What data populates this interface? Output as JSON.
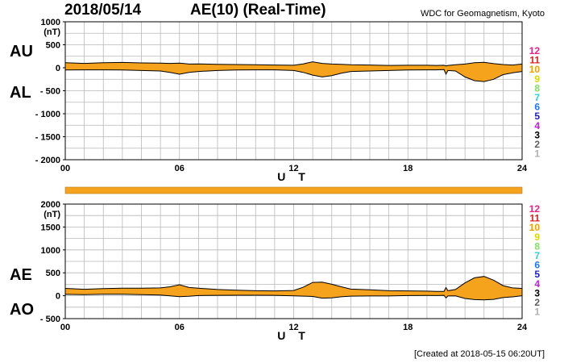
{
  "header": {
    "date": "2018/05/14",
    "index_title": "AE(10) (Real-Time)",
    "credit": "WDC for Geomagnetism, Kyoto"
  },
  "footer": {
    "created": "[Created at 2018-05-15 06:20UT]"
  },
  "station_scale": {
    "labels": [
      "12",
      "11",
      "10",
      "9",
      "8",
      "7",
      "6",
      "5",
      "4",
      "3",
      "2",
      "1"
    ],
    "colors": [
      "#e8237e",
      "#e02020",
      "#f0a000",
      "#d8d800",
      "#80e060",
      "#30d0d0",
      "#1e78ff",
      "#2020c0",
      "#c020e0",
      "#000000",
      "#606060",
      "#b0b0b0"
    ]
  },
  "colors": {
    "fill": "#f5a21c",
    "line": "#000000",
    "grid": "#b8b8b8",
    "coverage": "#f5a21c"
  },
  "chart_data": [
    {
      "type": "area",
      "panel": "AU/AL",
      "label_upper": "AU",
      "label_lower": "AL",
      "unit_label": "(nT)",
      "xlabel": "U T",
      "xlim": [
        0,
        24
      ],
      "ylim": [
        -2000,
        1000
      ],
      "yticks": [
        1000,
        500,
        0,
        -500,
        -1000,
        -1500,
        -2000
      ],
      "ytick_labels": [
        "1000",
        "500",
        "0",
        "- 500",
        "- 1000",
        "- 1500",
        "- 2000"
      ],
      "xticks": [
        0,
        6,
        12,
        18,
        24
      ],
      "xtick_labels": [
        "00",
        "06",
        "12",
        "18",
        "24"
      ],
      "grid": true,
      "x": [
        0,
        1,
        2,
        3,
        4,
        5,
        5.5,
        6,
        6.5,
        7,
        8,
        9,
        10,
        11,
        12,
        12.5,
        13,
        13.5,
        14,
        14.5,
        15,
        16,
        17,
        18,
        19,
        19.5,
        19.9,
        20,
        20.1,
        20.5,
        21,
        21.5,
        22,
        22.5,
        23,
        23.5,
        24
      ],
      "series": [
        {
          "name": "AU",
          "values": [
            110,
            95,
            110,
            115,
            105,
            100,
            95,
            100,
            80,
            85,
            75,
            70,
            65,
            60,
            55,
            85,
            130,
            95,
            80,
            75,
            65,
            60,
            50,
            55,
            55,
            50,
            55,
            40,
            50,
            65,
            80,
            110,
            120,
            90,
            70,
            60,
            80
          ]
        },
        {
          "name": "AL",
          "values": [
            -50,
            -45,
            -45,
            -50,
            -60,
            -70,
            -100,
            -140,
            -100,
            -80,
            -60,
            -50,
            -45,
            -45,
            -60,
            -100,
            -160,
            -200,
            -170,
            -120,
            -80,
            -70,
            -60,
            -50,
            -45,
            -45,
            -40,
            -140,
            -60,
            -70,
            -200,
            -280,
            -300,
            -250,
            -150,
            -110,
            -80
          ]
        }
      ]
    },
    {
      "type": "area",
      "panel": "AE/AO",
      "label_upper": "AE",
      "label_lower": "AO",
      "unit_label": "(nT)",
      "xlabel": "U T",
      "xlim": [
        0,
        24
      ],
      "ylim": [
        -500,
        2000
      ],
      "yticks": [
        2000,
        1500,
        1000,
        500,
        0,
        -500
      ],
      "ytick_labels": [
        "2000",
        "1500",
        "1000",
        "500",
        "0",
        "- 500"
      ],
      "xticks": [
        0,
        6,
        12,
        18,
        24
      ],
      "xtick_labels": [
        "00",
        "06",
        "12",
        "18",
        "24"
      ],
      "grid": true,
      "x": [
        0,
        1,
        2,
        3,
        4,
        5,
        5.5,
        6,
        6.5,
        7,
        8,
        9,
        10,
        11,
        12,
        12.5,
        13,
        13.5,
        14,
        14.5,
        15,
        16,
        17,
        18,
        19,
        19.5,
        19.9,
        20,
        20.1,
        20.5,
        21,
        21.5,
        22,
        22.5,
        23,
        23.5,
        24
      ],
      "series": [
        {
          "name": "AE",
          "values": [
            160,
            140,
            155,
            165,
            165,
            170,
            195,
            240,
            180,
            165,
            135,
            120,
            110,
            105,
            115,
            185,
            290,
            295,
            250,
            195,
            145,
            130,
            110,
            105,
            100,
            95,
            95,
            180,
            110,
            135,
            280,
            390,
            420,
            340,
            220,
            170,
            160
          ]
        },
        {
          "name": "AO",
          "values": [
            30,
            25,
            33,
            33,
            23,
            15,
            -3,
            -20,
            -10,
            3,
            8,
            10,
            10,
            8,
            -3,
            -8,
            -15,
            -53,
            -45,
            -23,
            -8,
            -5,
            -5,
            3,
            5,
            3,
            8,
            -50,
            -5,
            -3,
            -60,
            -85,
            -90,
            -80,
            -40,
            -25,
            0
          ]
        }
      ]
    }
  ]
}
